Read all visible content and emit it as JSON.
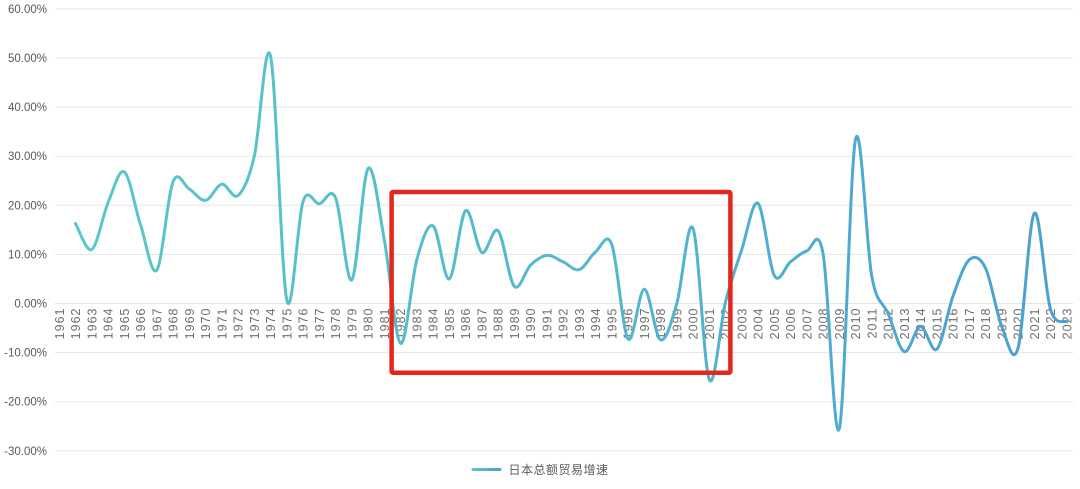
{
  "chart_data": {
    "type": "line",
    "title": "",
    "xlabel": "",
    "ylabel": "",
    "x": [
      1961,
      1962,
      1963,
      1964,
      1965,
      1966,
      1967,
      1968,
      1969,
      1970,
      1971,
      1972,
      1973,
      1974,
      1975,
      1976,
      1977,
      1978,
      1979,
      1980,
      1981,
      1982,
      1983,
      1984,
      1985,
      1986,
      1987,
      1988,
      1989,
      1990,
      1991,
      1992,
      1993,
      1994,
      1995,
      1996,
      1997,
      1998,
      1999,
      2000,
      2001,
      2002,
      2003,
      2004,
      2005,
      2006,
      2007,
      2008,
      2009,
      2010,
      2011,
      2012,
      2013,
      2014,
      2015,
      2016,
      2017,
      2018,
      2019,
      2020,
      2021,
      2022,
      2023
    ],
    "series": [
      {
        "name": "日本总额贸易增速",
        "color_start": "#5cc7c9",
        "color_mid": "#54b6cc",
        "color_end": "#4c9fd1",
        "line_width": 3,
        "values": [
          null,
          16.3,
          11,
          20.5,
          26.8,
          16,
          6.8,
          24.8,
          23.3,
          21,
          24.3,
          22,
          30,
          50.3,
          0.7,
          20.8,
          20.3,
          21.5,
          4.8,
          27.5,
          13,
          -8.1,
          8.9,
          15.8,
          5,
          18.9,
          10.4,
          14.8,
          3.5,
          7.8,
          9.8,
          8.5,
          6.9,
          10.5,
          12,
          -7.2,
          2.9,
          -7.4,
          0,
          15.3,
          -15.5,
          0.3,
          11,
          20.4,
          5.7,
          8.5,
          10.7,
          10.2,
          -25.5,
          33.4,
          5.5,
          -2,
          -9.8,
          -4.7,
          -9.3,
          1.5,
          8.9,
          7.2,
          -4.7,
          -9.1,
          18.4,
          -1.2,
          -3.7
        ]
      }
    ],
    "ylim": [
      -30,
      60
    ],
    "y_tick_step": 10,
    "y_tick_labels": [
      "60.00%",
      "50.00%",
      "40.00%",
      "30.00%",
      "20.00%",
      "10.00%",
      "0.00%",
      "-10.00%",
      "-20.00%",
      "-30.00%"
    ],
    "grid": "horizontal",
    "legend_position": "bottom-center",
    "annotations": [
      {
        "type": "rect",
        "x_from": 1981.45,
        "x_to": 2002.3,
        "y_from": -14.1,
        "y_to": 22.7,
        "color": "#e3271d",
        "stroke_width": 4.5
      }
    ]
  },
  "colors": {
    "background": "#ffffff",
    "gridline": "#e5e5e5",
    "y_axis_label": "#595959",
    "x_axis_label": "#6e6e6e",
    "highlight_red": "#e3271d"
  }
}
